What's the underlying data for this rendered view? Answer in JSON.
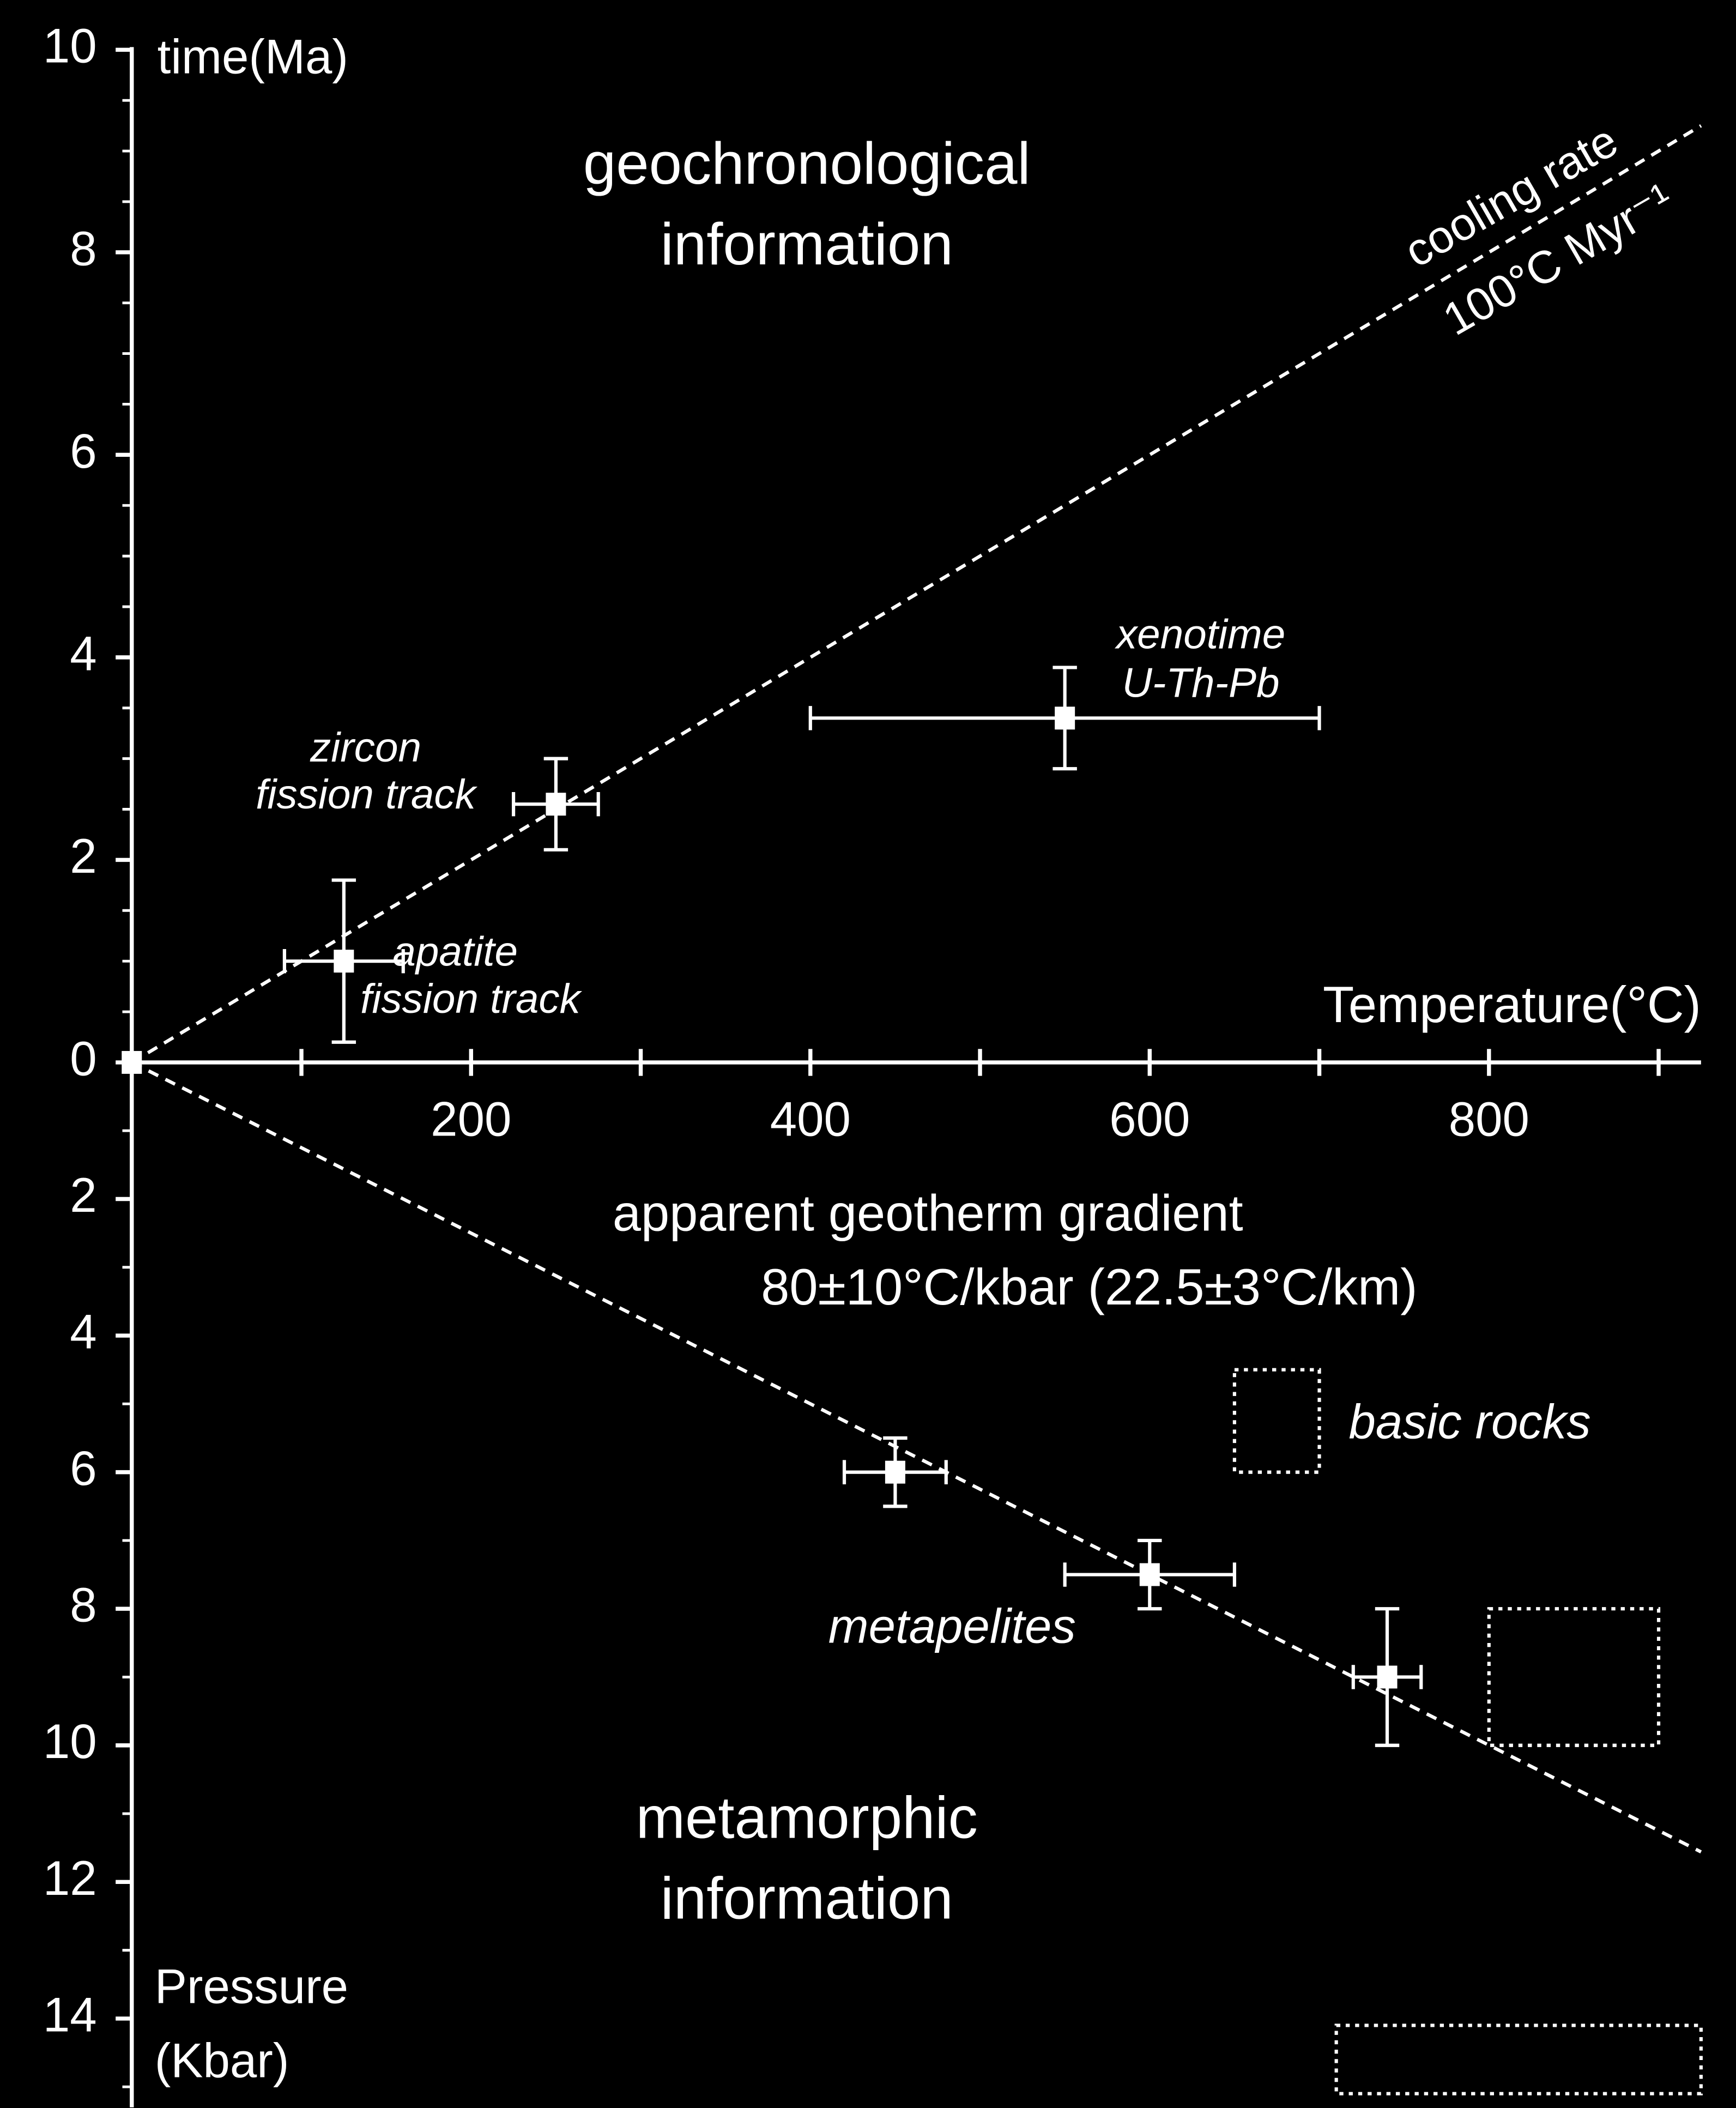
{
  "chart_data": [
    {
      "type": "scatter",
      "x_label": "Temperature(°C)",
      "y_label": "time(Ma)",
      "xlim": [
        0,
        925
      ],
      "xticks": [
        200,
        400,
        600,
        800
      ],
      "minor_xticks": [
        100,
        300,
        500,
        700,
        900
      ],
      "ylim": [
        0,
        10
      ],
      "yticks": [
        0,
        2,
        4,
        6,
        8,
        10
      ],
      "minor_yticks": [
        0.5,
        1,
        1.5,
        2.5,
        3,
        3.5,
        4.5,
        5,
        5.5,
        6.5,
        7,
        7.5,
        8.5,
        9,
        9.5
      ],
      "points": [
        {
          "x": 0,
          "y": 0
        },
        {
          "x": 125,
          "y": 1.0,
          "xerr": 35,
          "yerr": 0.8
        },
        {
          "x": 250,
          "y": 2.55,
          "xerr": 25,
          "yerr": 0.45
        },
        {
          "x": 550,
          "y": 3.4,
          "xerr": 150,
          "yerr": 0.5
        }
      ],
      "lines": [
        {
          "x": [
            0,
            925
          ],
          "values": [
            0,
            9.25
          ]
        }
      ],
      "annotations": [
        "geochronological",
        "information",
        "cooling rate",
        "100°C Myr⁻¹",
        "zircon",
        "fission track",
        "apatite",
        "fission track",
        "xenotime",
        "U-Th-Pb"
      ]
    },
    {
      "type": "scatter",
      "inverted": true,
      "y_label": "Pressure",
      "y_unit": "(Kbar)",
      "xlim": [
        0,
        925
      ],
      "ylim": [
        0,
        15.3
      ],
      "yticks": [
        2,
        4,
        6,
        8,
        10,
        12,
        14
      ],
      "minor_yticks": [
        1,
        3,
        5,
        7,
        9,
        11,
        13,
        15
      ],
      "points": [
        {
          "x": 450,
          "y": 6.0,
          "xerr": 30,
          "yerr": 0.5
        },
        {
          "x": 600,
          "y": 7.5,
          "xerr": 50,
          "yerr": 0.5
        },
        {
          "x": 740,
          "y": 9.0,
          "xerr": 20,
          "yerr": 1.0
        }
      ],
      "lines": [
        {
          "x": [
            0,
            925
          ],
          "values": [
            0,
            11.56
          ]
        }
      ],
      "regions": [
        {
          "xlim": [
            650,
            700
          ],
          "ylim": [
            4.5,
            6.0
          ]
        },
        {
          "xlim": [
            800,
            900
          ],
          "ylim": [
            8.0,
            10.0
          ]
        },
        {
          "xlim": [
            710,
            925
          ],
          "ylim": [
            14.1,
            15.1
          ]
        }
      ],
      "annotations": [
        "apparent geotherm gradient",
        "80±10°C/kbar (22.5±3°C/km)",
        "basic rocks",
        "metapelites",
        "metamorphic",
        "information"
      ]
    }
  ]
}
